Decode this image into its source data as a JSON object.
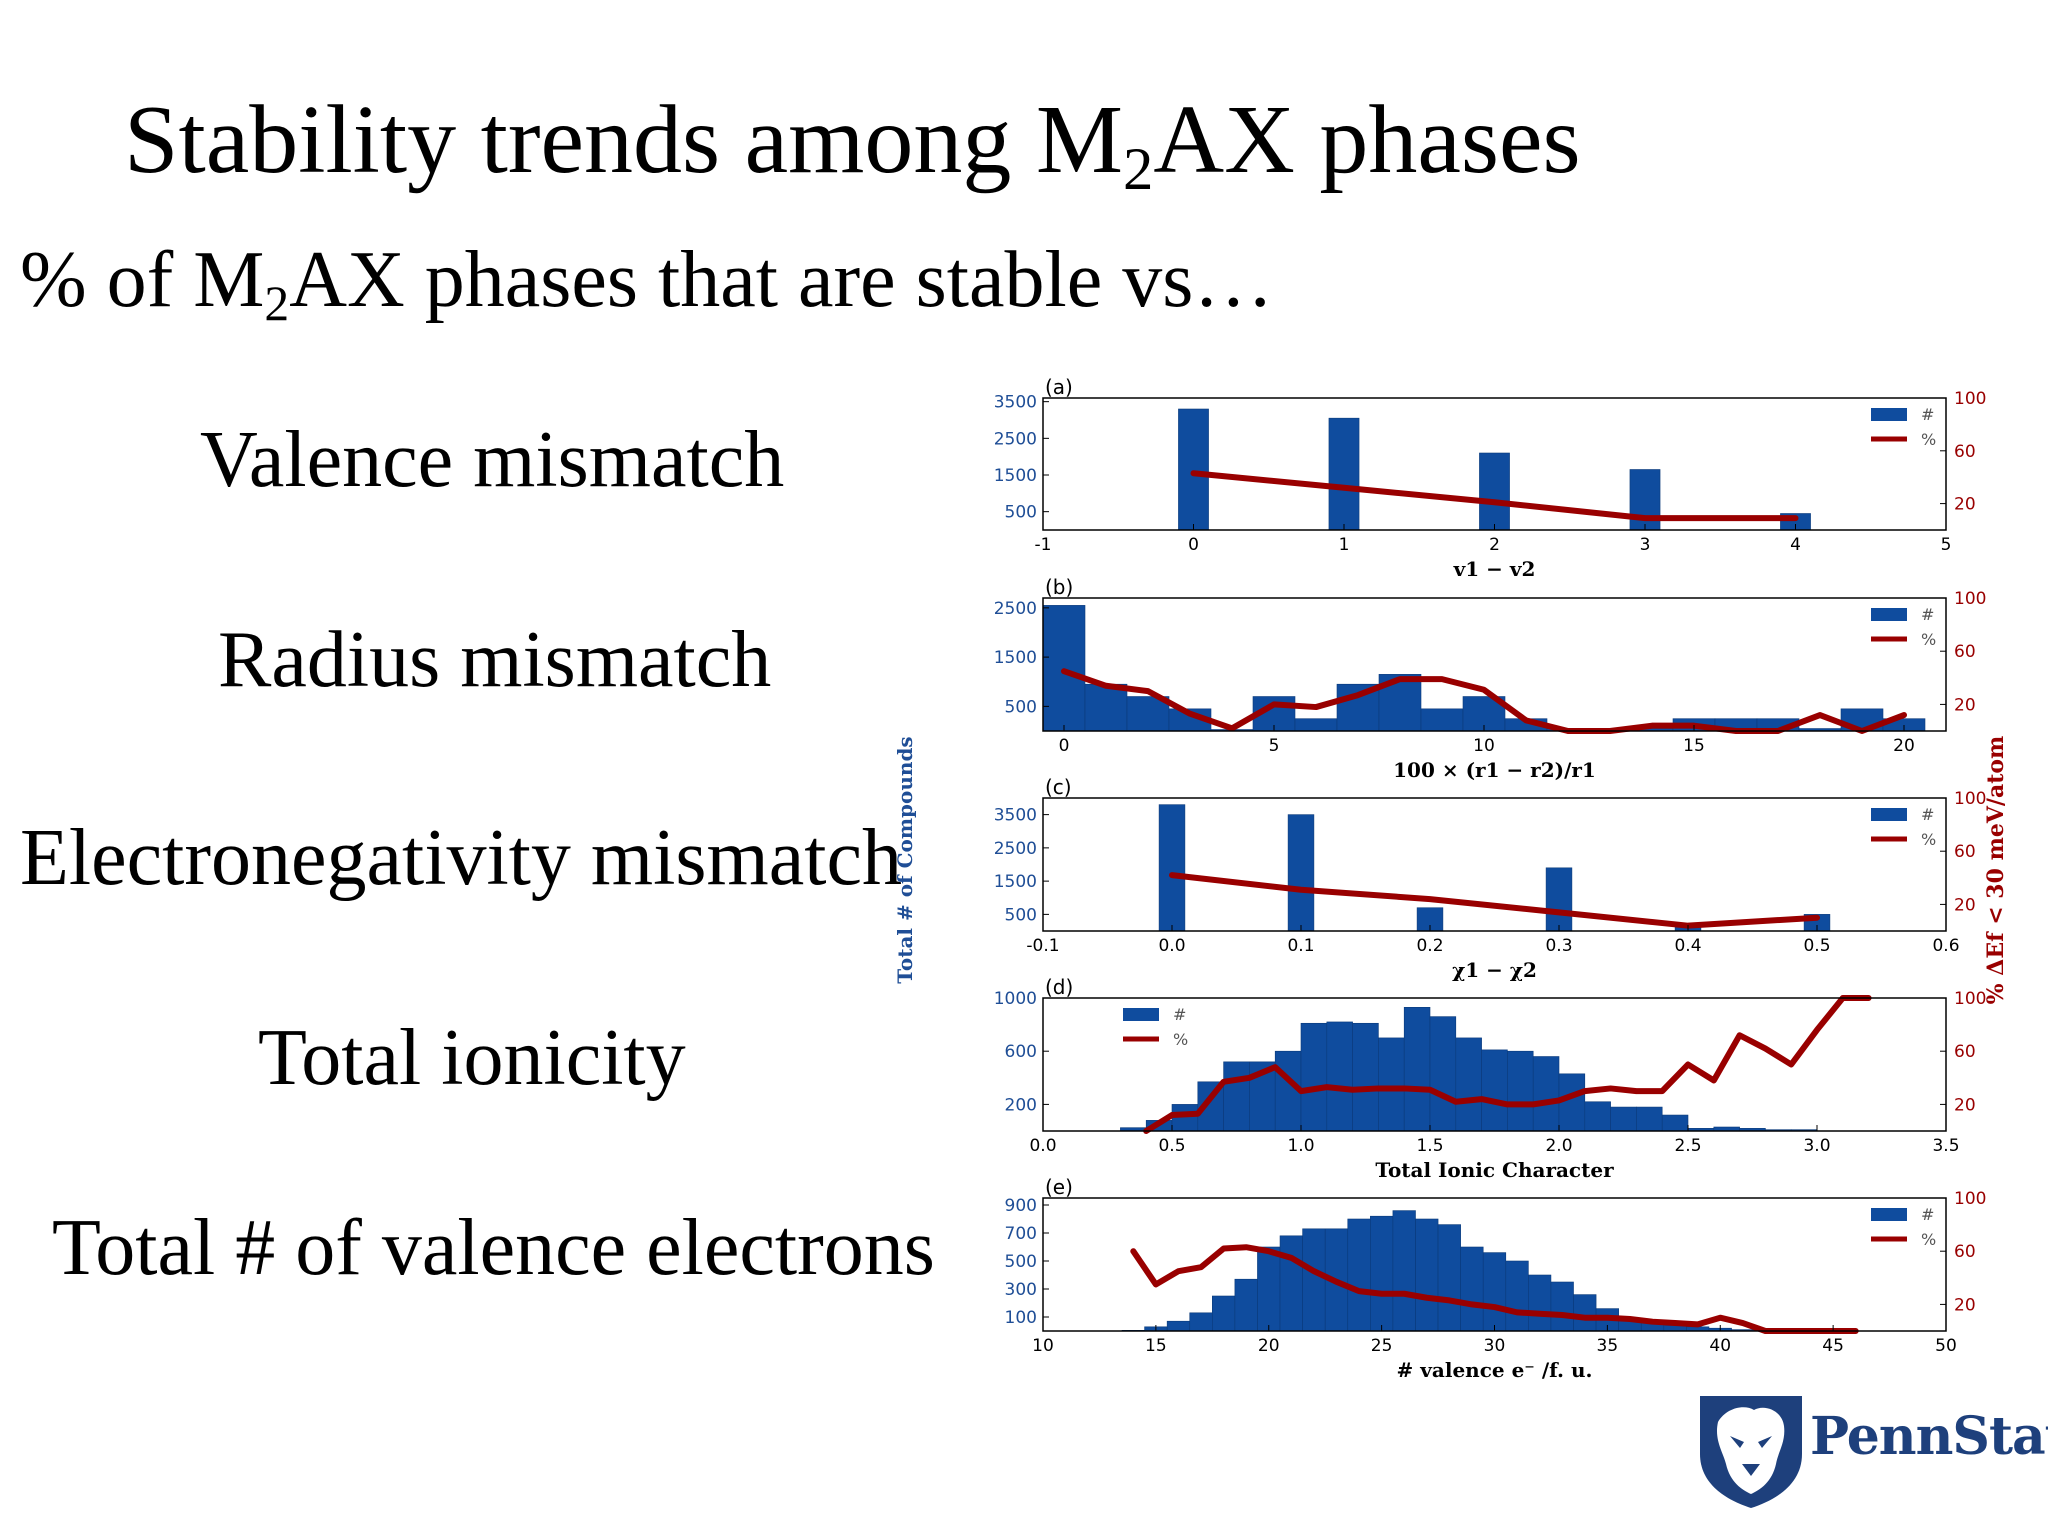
{
  "slide": {
    "title_pre": "Stability trends among M",
    "title_sub": "2",
    "title_post": "AX phases",
    "subtitle_pre": "% of M",
    "subtitle_sub": "2",
    "subtitle_post": "AX phases that are stable vs…",
    "topics": [
      "Valence mismatch",
      "Radius mismatch",
      "Electronegativity mismatch",
      "Total ionicity",
      "Total # of valence electrons"
    ]
  },
  "logo": {
    "text": "PennState"
  },
  "colors": {
    "bar": "#0f4c9e",
    "line": "#990000",
    "left_axis": "#1f4e96",
    "right_axis": "#990000"
  },
  "shared_axis_labels": {
    "left": "Total # of Compounds",
    "right": "% ΔEf < 30 meV/atom"
  },
  "chart_data": [
    {
      "type": "bar",
      "panel_label": "(a)",
      "xlabel": "v1 − v2",
      "xlim": [
        -1,
        5
      ],
      "xticks": [
        -1,
        0,
        1,
        2,
        3,
        4,
        5
      ],
      "ylim_left": [
        0,
        3600
      ],
      "yticks_left": [
        500,
        1500,
        2500,
        3500
      ],
      "ylim_right": [
        0,
        100
      ],
      "yticks_right": [
        20,
        60,
        100
      ],
      "legend": {
        "position": "top-right",
        "entries": [
          "#",
          "%"
        ]
      },
      "bar_width": 0.2,
      "bars": {
        "x": [
          0,
          1,
          2,
          3,
          4
        ],
        "values": [
          3300,
          3050,
          2100,
          1650,
          450
        ]
      },
      "line": {
        "x": [
          0,
          1,
          2,
          3,
          4
        ],
        "values": [
          43,
          32,
          21,
          9,
          9
        ]
      }
    },
    {
      "type": "bar",
      "panel_label": "(b)",
      "xlabel": "100 × (r1 − r2)/r1",
      "xlim": [
        -0.5,
        21
      ],
      "xticks": [
        0,
        5,
        10,
        15,
        20
      ],
      "ylim_left": [
        0,
        2700
      ],
      "yticks_left": [
        500,
        1500,
        2500
      ],
      "ylim_right": [
        0,
        100
      ],
      "yticks_right": [
        20,
        60,
        100
      ],
      "legend": {
        "position": "top-right",
        "entries": [
          "#",
          "%"
        ]
      },
      "bar_width": 1,
      "bars": {
        "x": [
          0,
          1,
          2,
          3,
          4,
          5,
          6,
          7,
          8,
          9,
          10,
          11,
          12,
          13,
          14,
          15,
          16,
          17,
          18,
          19,
          20
        ],
        "values": [
          2550,
          950,
          700,
          450,
          30,
          700,
          250,
          950,
          1150,
          450,
          700,
          250,
          50,
          50,
          50,
          250,
          250,
          250,
          50,
          450,
          250
        ]
      },
      "line": {
        "x": [
          0,
          1,
          2,
          3,
          4,
          5,
          6,
          7,
          8,
          9,
          10,
          11,
          12,
          13,
          14,
          15,
          16,
          17,
          18,
          19,
          20
        ],
        "values": [
          45,
          34,
          30,
          13,
          2,
          20,
          18,
          27,
          39,
          39,
          31,
          8,
          0,
          0,
          4,
          4,
          0,
          0,
          12,
          0,
          12
        ]
      }
    },
    {
      "type": "bar",
      "panel_label": "(c)",
      "xlabel": "χ1 − χ2",
      "xlim": [
        -0.1,
        0.6
      ],
      "xticks": [
        -0.1,
        0.0,
        0.1,
        0.2,
        0.3,
        0.4,
        0.5,
        0.6
      ],
      "ylim_left": [
        0,
        4000
      ],
      "yticks_left": [
        500,
        1500,
        2500,
        3500
      ],
      "ylim_right": [
        0,
        100
      ],
      "yticks_right": [
        20,
        60,
        100
      ],
      "legend": {
        "position": "top-right",
        "entries": [
          "#",
          "%"
        ]
      },
      "bar_width": 0.02,
      "bars": {
        "x": [
          0.0,
          0.1,
          0.2,
          0.3,
          0.4,
          0.5
        ],
        "values": [
          3800,
          3500,
          700,
          1900,
          150,
          500
        ]
      },
      "line": {
        "x": [
          0.0,
          0.1,
          0.2,
          0.3,
          0.4,
          0.5
        ],
        "values": [
          42,
          31,
          24,
          14,
          4,
          10
        ]
      }
    },
    {
      "type": "bar",
      "panel_label": "(d)",
      "xlabel": "Total Ionic Character",
      "xlim": [
        0.0,
        3.5
      ],
      "xticks": [
        0.0,
        0.5,
        1.0,
        1.5,
        2.0,
        2.5,
        3.0,
        3.5
      ],
      "ylim_left": [
        0,
        1000
      ],
      "yticks_left": [
        200,
        600,
        1000
      ],
      "ylim_right": [
        0,
        100
      ],
      "yticks_right": [
        20,
        60,
        100
      ],
      "legend": {
        "position": "top-left",
        "entries": [
          "#",
          "%"
        ]
      },
      "bar_width": 0.1,
      "bars": {
        "x": [
          0.35,
          0.45,
          0.55,
          0.65,
          0.75,
          0.85,
          0.95,
          1.05,
          1.15,
          1.25,
          1.35,
          1.45,
          1.55,
          1.65,
          1.75,
          1.85,
          1.95,
          2.05,
          2.15,
          2.25,
          2.35,
          2.45,
          2.55,
          2.65,
          2.75,
          2.85,
          2.95
        ],
        "values": [
          25,
          80,
          200,
          370,
          520,
          520,
          600,
          810,
          820,
          810,
          700,
          930,
          860,
          700,
          610,
          600,
          560,
          430,
          220,
          180,
          180,
          120,
          20,
          30,
          20,
          10,
          10
        ]
      },
      "line": {
        "x": [
          0.4,
          0.5,
          0.6,
          0.7,
          0.8,
          0.9,
          1.0,
          1.1,
          1.2,
          1.3,
          1.4,
          1.5,
          1.6,
          1.7,
          1.8,
          1.9,
          2.0,
          2.1,
          2.2,
          2.3,
          2.4,
          2.5,
          2.6,
          2.7,
          2.8,
          2.9,
          3.0,
          3.1,
          3.2
        ],
        "values": [
          0,
          12,
          13,
          37,
          40,
          48,
          30,
          33,
          31,
          32,
          32,
          31,
          22,
          24,
          20,
          20,
          23,
          30,
          32,
          30,
          30,
          50,
          38,
          72,
          62,
          50,
          76,
          100,
          100
        ]
      }
    },
    {
      "type": "bar",
      "panel_label": "(e)",
      "xlabel": "# valence e⁻ /f. u.",
      "xlim": [
        10,
        50
      ],
      "xticks": [
        10,
        15,
        20,
        25,
        30,
        35,
        40,
        45,
        50
      ],
      "ylim_left": [
        0,
        950
      ],
      "yticks_left": [
        100,
        300,
        500,
        700,
        900
      ],
      "ylim_right": [
        0,
        100
      ],
      "yticks_right": [
        20,
        60,
        100
      ],
      "legend": {
        "position": "top-right",
        "entries": [
          "#",
          "%"
        ]
      },
      "bar_width": 1,
      "bars": {
        "x": [
          14,
          15,
          16,
          17,
          18,
          19,
          20,
          21,
          22,
          23,
          24,
          25,
          26,
          27,
          28,
          29,
          30,
          31,
          32,
          33,
          34,
          35,
          36,
          37,
          38,
          39,
          40,
          41,
          42,
          43,
          44,
          45
        ],
        "values": [
          5,
          30,
          70,
          130,
          250,
          370,
          600,
          680,
          730,
          730,
          800,
          820,
          860,
          800,
          760,
          600,
          560,
          500,
          400,
          350,
          260,
          160,
          80,
          60,
          40,
          30,
          20,
          10,
          5,
          5,
          5,
          5
        ]
      },
      "line": {
        "x": [
          14,
          15,
          16,
          17,
          18,
          19,
          20,
          21,
          22,
          23,
          24,
          25,
          26,
          27,
          28,
          29,
          30,
          31,
          32,
          33,
          34,
          35,
          36,
          37,
          38,
          39,
          40,
          41,
          42,
          43,
          44,
          45,
          46
        ],
        "values": [
          60,
          35,
          45,
          48,
          62,
          63,
          60,
          55,
          45,
          37,
          30,
          28,
          28,
          25,
          23,
          20,
          18,
          14,
          13,
          12,
          10,
          10,
          9,
          7,
          6,
          5,
          10,
          6,
          0,
          0,
          0,
          0,
          0
        ]
      }
    }
  ]
}
